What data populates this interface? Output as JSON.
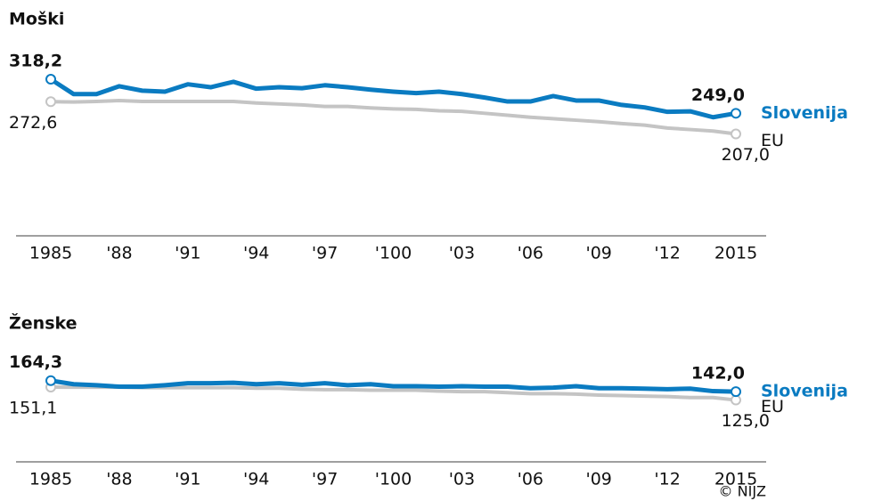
{
  "chart_data": [
    {
      "type": "line",
      "title": "Moški",
      "x": [
        1985,
        1986,
        1987,
        1988,
        1989,
        1990,
        1991,
        1992,
        1993,
        1994,
        1995,
        1996,
        1997,
        1998,
        1999,
        2000,
        2001,
        2002,
        2003,
        2004,
        2005,
        2006,
        2007,
        2008,
        2009,
        2010,
        2011,
        2012,
        2013,
        2014,
        2015
      ],
      "xlim": [
        1985,
        2015
      ],
      "xticks": [
        {
          "value": 1985,
          "label": "1985"
        },
        {
          "value": 1988,
          "label": "'88"
        },
        {
          "value": 1991,
          "label": "'91"
        },
        {
          "value": 1994,
          "label": "'94"
        },
        {
          "value": 1997,
          "label": "'97"
        },
        {
          "value": 2000,
          "label": "'100"
        },
        {
          "value": 2003,
          "label": "'03"
        },
        {
          "value": 2006,
          "label": "'06"
        },
        {
          "value": 2009,
          "label": "'09"
        },
        {
          "value": 2012,
          "label": "'12"
        },
        {
          "value": 2015,
          "label": "2015"
        }
      ],
      "ylim": [
        0,
        340
      ],
      "series": [
        {
          "name": "Slovenija",
          "color": "#0a7bc1",
          "values": [
            318.2,
            288,
            288,
            304,
            295,
            293,
            308,
            302,
            313,
            299,
            302,
            300,
            306,
            302,
            297,
            293,
            290,
            293,
            288,
            281,
            273,
            273,
            284,
            275,
            275,
            266,
            261,
            252,
            253,
            241,
            249.0
          ],
          "value_labels": [
            "318,2",
            null,
            null,
            null,
            null,
            null,
            null,
            null,
            null,
            null,
            null,
            null,
            null,
            null,
            null,
            null,
            null,
            null,
            null,
            null,
            null,
            null,
            null,
            null,
            null,
            null,
            null,
            null,
            null,
            null,
            "249,0"
          ]
        },
        {
          "name": "EU",
          "color": "#c4c4c4",
          "values": [
            272.6,
            272,
            273,
            275,
            273,
            273,
            273,
            273,
            273,
            270,
            268,
            266,
            263,
            263,
            260,
            258,
            257,
            254,
            253,
            249,
            245,
            241,
            238,
            235,
            232,
            228,
            225,
            219,
            216,
            213,
            207.0
          ],
          "value_labels": [
            "272,6",
            null,
            null,
            null,
            null,
            null,
            null,
            null,
            null,
            null,
            null,
            null,
            null,
            null,
            null,
            null,
            null,
            null,
            null,
            null,
            null,
            null,
            null,
            null,
            null,
            null,
            null,
            null,
            null,
            null,
            "207,0"
          ]
        }
      ]
    },
    {
      "type": "line",
      "title": "Ženske",
      "x": [
        1985,
        1986,
        1987,
        1988,
        1989,
        1990,
        1991,
        1992,
        1993,
        1994,
        1995,
        1996,
        1997,
        1998,
        1999,
        2000,
        2001,
        2002,
        2003,
        2004,
        2005,
        2006,
        2007,
        2008,
        2009,
        2010,
        2011,
        2012,
        2013,
        2014,
        2015
      ],
      "xlim": [
        1985,
        2015
      ],
      "xticks": [
        {
          "value": 1985,
          "label": "1985"
        },
        {
          "value": 1988,
          "label": "'88"
        },
        {
          "value": 1991,
          "label": "'91"
        },
        {
          "value": 1994,
          "label": "'94"
        },
        {
          "value": 1997,
          "label": "'97"
        },
        {
          "value": 2000,
          "label": "'100"
        },
        {
          "value": 2003,
          "label": "'03"
        },
        {
          "value": 2006,
          "label": "'06"
        },
        {
          "value": 2009,
          "label": "'09"
        },
        {
          "value": 2012,
          "label": "'12"
        },
        {
          "value": 2015,
          "label": "2015"
        }
      ],
      "ylim": [
        0,
        180
      ],
      "series": [
        {
          "name": "Slovenija",
          "color": "#0a7bc1",
          "values": [
            164.3,
            157,
            155,
            152,
            152,
            155,
            159,
            159,
            160,
            157,
            159,
            156,
            159,
            155,
            157,
            153,
            153,
            152,
            153,
            152,
            152,
            149,
            150,
            153,
            149,
            149,
            148,
            147,
            148,
            143,
            142.0
          ],
          "value_labels": [
            "164,3",
            null,
            null,
            null,
            null,
            null,
            null,
            null,
            null,
            null,
            null,
            null,
            null,
            null,
            null,
            null,
            null,
            null,
            null,
            null,
            null,
            null,
            null,
            null,
            null,
            null,
            null,
            null,
            null,
            null,
            "142,0"
          ]
        },
        {
          "name": "EU",
          "color": "#c4c4c4",
          "values": [
            151.1,
            151,
            151,
            151,
            150,
            150,
            150,
            150,
            150,
            149,
            149,
            147,
            146,
            146,
            145,
            145,
            145,
            143,
            142,
            142,
            140,
            138,
            138,
            137,
            135,
            134,
            133,
            132,
            130,
            130,
            125.0
          ],
          "value_labels": [
            "151,1",
            null,
            null,
            null,
            null,
            null,
            null,
            null,
            null,
            null,
            null,
            null,
            null,
            null,
            null,
            null,
            null,
            null,
            null,
            null,
            null,
            null,
            null,
            null,
            null,
            null,
            null,
            null,
            null,
            null,
            "125,0"
          ]
        }
      ]
    }
  ],
  "source": "© NIJZ"
}
